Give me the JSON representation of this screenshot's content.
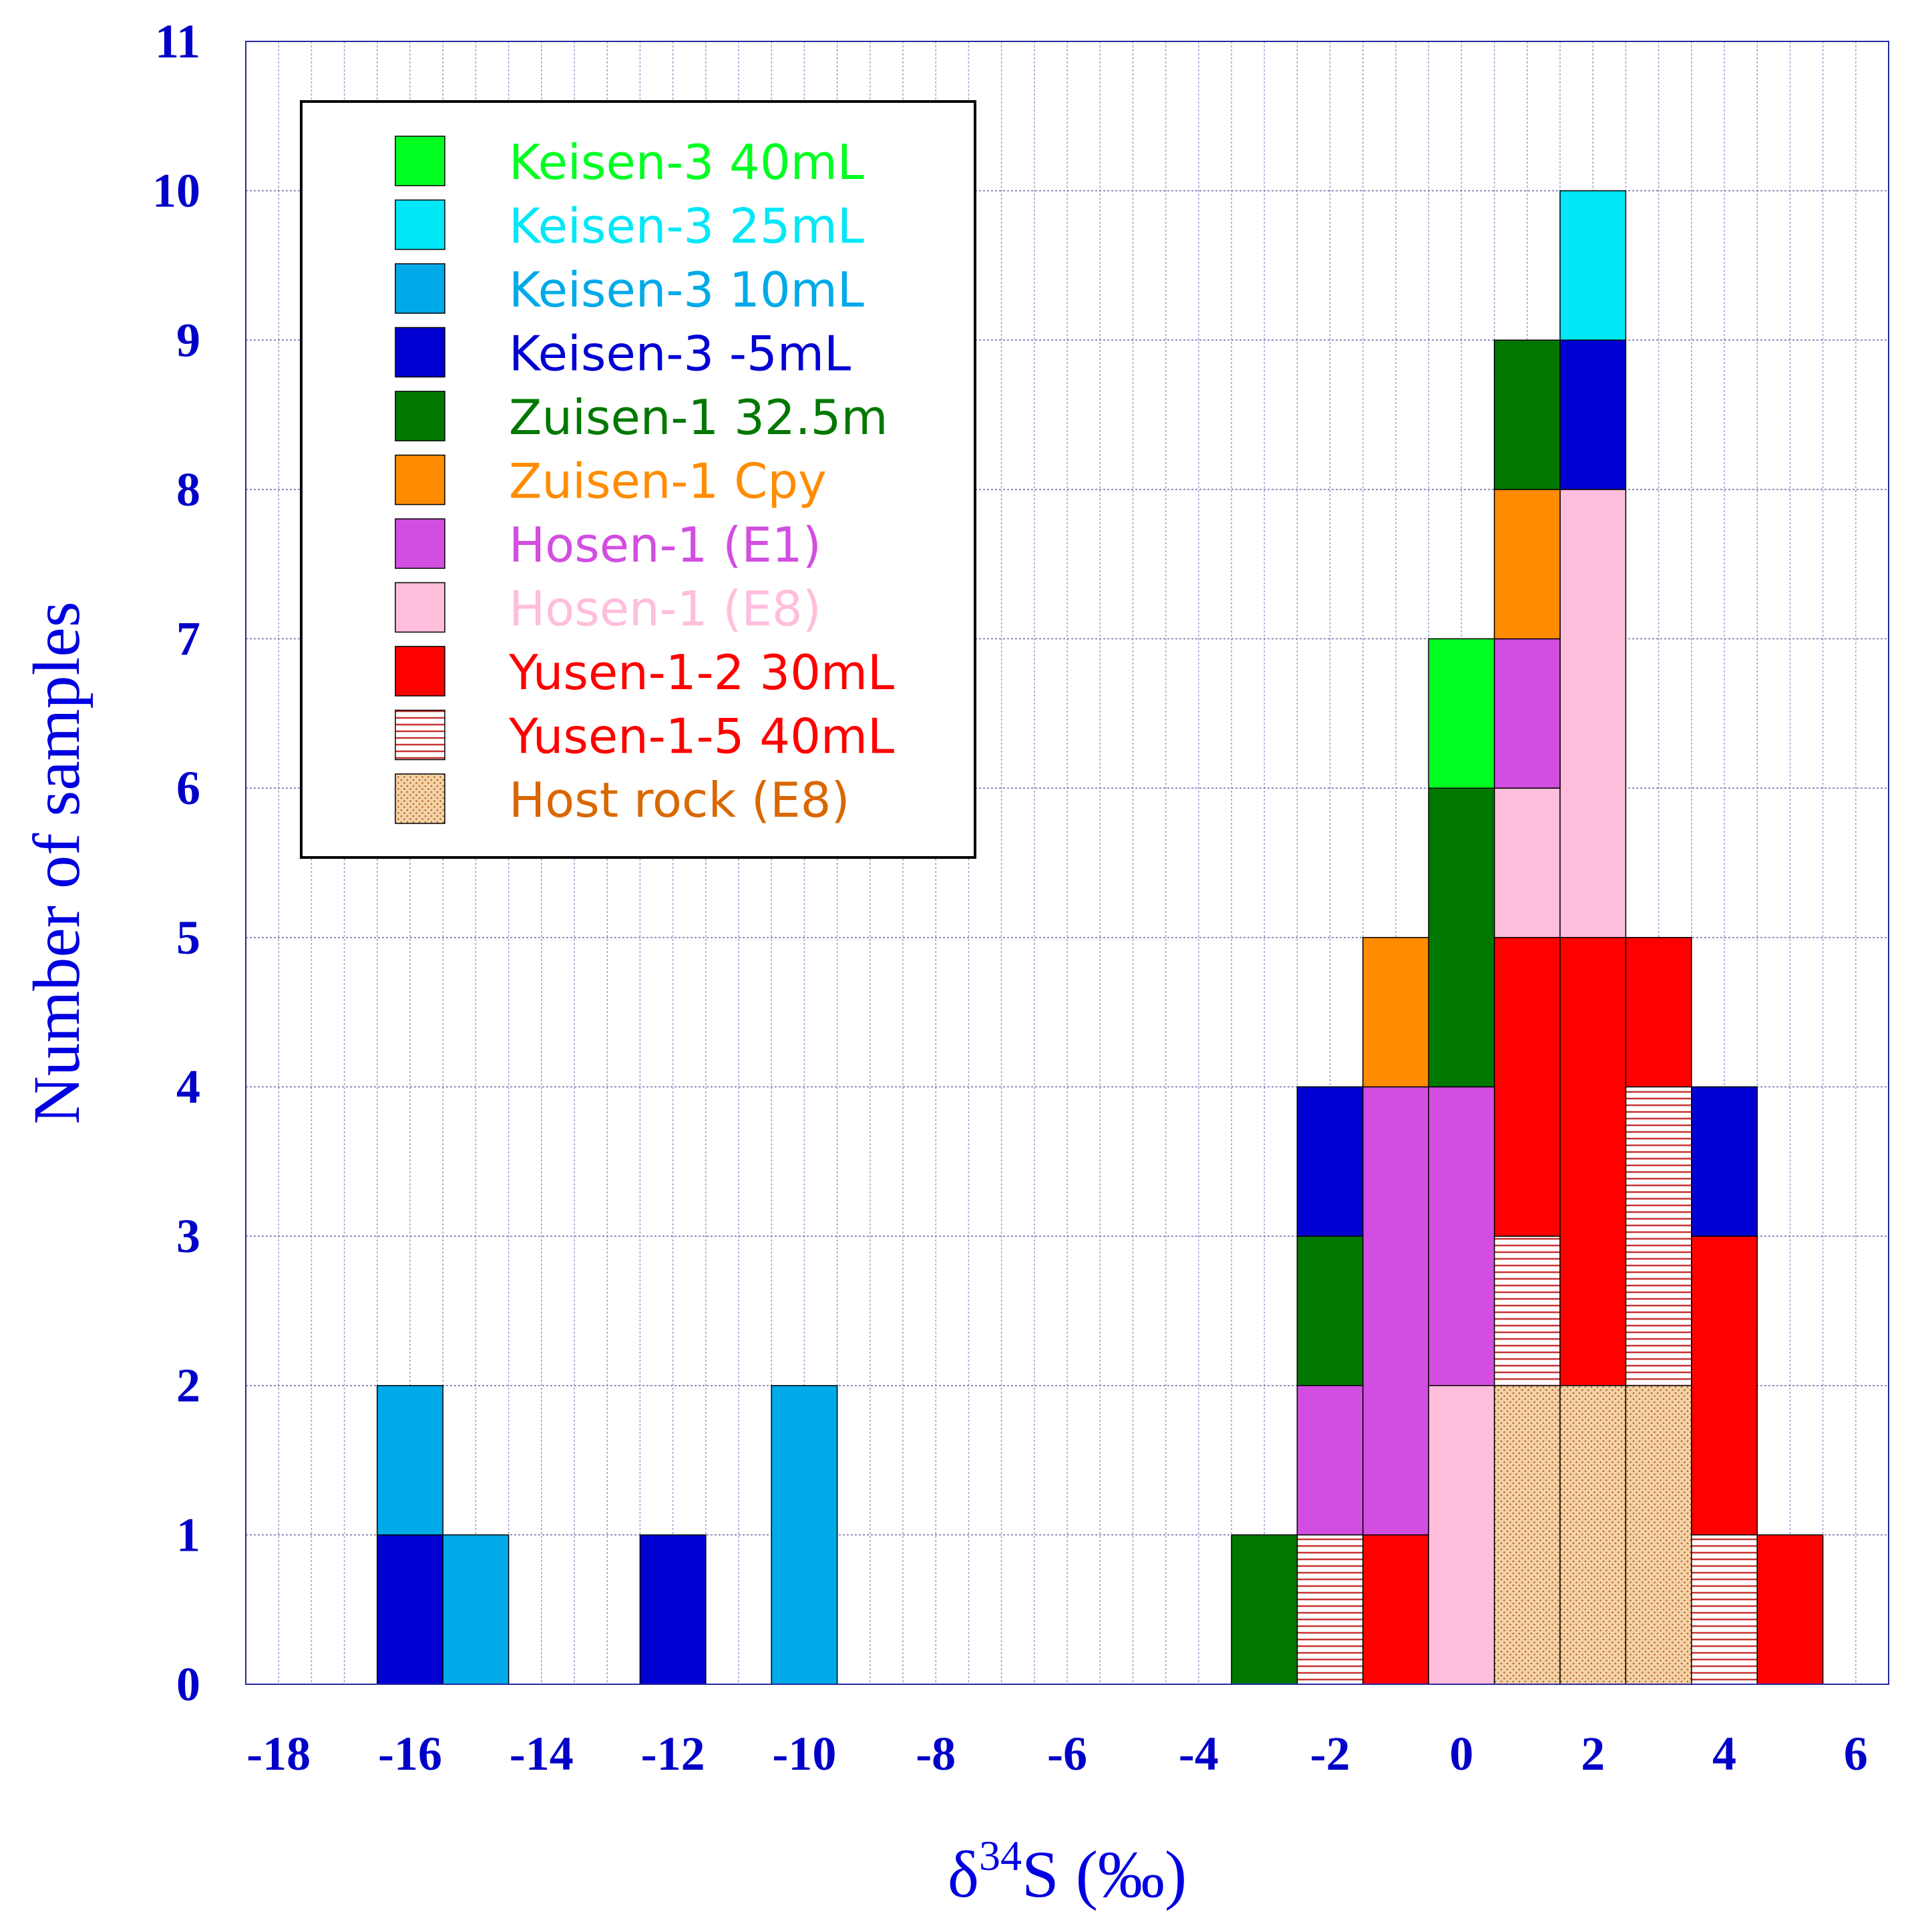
{
  "chart_data": {
    "type": "bar",
    "subtype": "stacked-histogram",
    "title": "",
    "xlabel_main": "δ",
    "xlabel_super": "34",
    "xlabel_rest": "S (‰)",
    "ylabel": "Number of samples",
    "xlim": [
      -18.5,
      6.5
    ],
    "ylim": [
      0,
      11
    ],
    "bin_width": 1,
    "x_ticks": [
      -18,
      -16,
      -14,
      -12,
      -10,
      -8,
      -6,
      -4,
      -2,
      0,
      2,
      4,
      6
    ],
    "y_ticks": [
      0,
      1,
      2,
      3,
      4,
      5,
      6,
      7,
      8,
      9,
      10,
      11
    ],
    "grid": true,
    "legend_position": "top-left",
    "bin_centers": [
      -16,
      -15,
      -12,
      -10,
      -3,
      -2,
      -1,
      0,
      1,
      2,
      3,
      4,
      5
    ],
    "series": [
      {
        "name": "Host rock (E8)",
        "color": "#f4d2a8",
        "text_color": "#d96800",
        "pattern": "dots",
        "values": [
          0,
          0,
          0,
          0,
          0,
          0,
          0,
          0,
          2,
          2,
          2,
          0,
          0
        ]
      },
      {
        "name": "Yusen-1-5 40mL",
        "color": "#ffffff",
        "text_color": "#ff0000",
        "pattern": "stripes",
        "values": [
          0,
          0,
          0,
          0,
          0,
          1,
          0,
          0,
          1,
          0,
          2,
          1,
          0
        ]
      },
      {
        "name": "Yusen-1-2 30mL",
        "color": "#ff0000",
        "text_color": "#ff0000",
        "pattern": "none",
        "values": [
          0,
          0,
          0,
          0,
          0,
          0,
          1,
          0,
          2,
          3,
          1,
          2,
          1
        ]
      },
      {
        "name": "Hosen-1 (E8)",
        "color": "#ffbedc",
        "text_color": "#ffbedc",
        "pattern": "none",
        "values": [
          0,
          0,
          0,
          0,
          0,
          0,
          0,
          2,
          1,
          3,
          0,
          0,
          0
        ]
      },
      {
        "name": "Hosen-1 (E1)",
        "color": "#d24ee0",
        "text_color": "#d24ee0",
        "pattern": "none",
        "values": [
          0,
          0,
          0,
          0,
          0,
          1,
          3,
          2,
          1,
          0,
          0,
          0,
          0
        ]
      },
      {
        "name": "Zuisen-1 Cpy",
        "color": "#ff8c00",
        "text_color": "#ff8c00",
        "pattern": "none",
        "values": [
          0,
          0,
          0,
          0,
          0,
          0,
          1,
          0,
          1,
          0,
          0,
          0,
          0
        ]
      },
      {
        "name": "Zuisen-1 32.5m",
        "color": "#007800",
        "text_color": "#007800",
        "pattern": "none",
        "values": [
          0,
          0,
          0,
          0,
          1,
          1,
          0,
          2,
          1,
          0,
          0,
          0,
          0
        ]
      },
      {
        "name": "Keisen-3 -5mL",
        "color": "#0000d2",
        "text_color": "#0000d2",
        "pattern": "none",
        "values": [
          1,
          0,
          1,
          0,
          0,
          1,
          0,
          0,
          0,
          1,
          0,
          1,
          0
        ]
      },
      {
        "name": "Keisen-3 10mL",
        "color": "#00aae8",
        "text_color": "#00aae8",
        "pattern": "none",
        "values": [
          1,
          1,
          0,
          2,
          0,
          0,
          0,
          0,
          0,
          0,
          0,
          0,
          0
        ]
      },
      {
        "name": "Keisen-3 25mL",
        "color": "#00e8f8",
        "text_color": "#00e8f8",
        "pattern": "none",
        "values": [
          0,
          0,
          0,
          0,
          0,
          0,
          0,
          0,
          0,
          1,
          0,
          0,
          0
        ]
      },
      {
        "name": "Keisen-3 40mL",
        "color": "#00ff20",
        "text_color": "#00ff20",
        "pattern": "none",
        "values": [
          0,
          0,
          0,
          0,
          0,
          0,
          0,
          1,
          0,
          0,
          0,
          0,
          0
        ]
      }
    ],
    "legend_order": [
      "Keisen-3 40mL",
      "Keisen-3 25mL",
      "Keisen-3 10mL",
      "Keisen-3 -5mL",
      "Zuisen-1 32.5m",
      "Zuisen-1 Cpy",
      "Hosen-1 (E1)",
      "Hosen-1 (E8)",
      "Yusen-1-2 30mL",
      "Yusen-1-5 40mL",
      "Host rock (E8)"
    ]
  }
}
